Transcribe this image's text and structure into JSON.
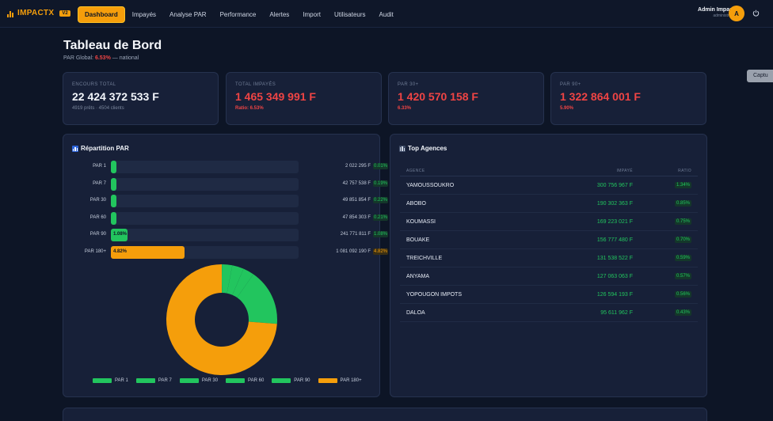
{
  "brand": {
    "name": "IMPACTX",
    "badge": "V2"
  },
  "nav": [
    "Dashboard",
    "Impayés",
    "Analyse PAR",
    "Performance",
    "Alertes",
    "Import",
    "Utilisateurs",
    "Audit"
  ],
  "user": {
    "name": "Admin ImpactX",
    "role": "administrateur",
    "initial": "A"
  },
  "capture_label": "Captu",
  "header": {
    "title": "Tableau de Bord",
    "subtitle_prefix": "PAR Global:",
    "subtitle_value": "6.53%",
    "subtitle_suffix": "— national"
  },
  "kpis": [
    {
      "label": "ENCOURS TOTAL",
      "value": "22 424 372 533 F",
      "sub": "4919 prêts · 4504 clients"
    },
    {
      "label": "TOTAL IMPAYÉS",
      "value": "1 465 349 991 F",
      "sub": "Ratio: 6.53%"
    },
    {
      "label": "PAR 30+",
      "value": "1 420 570 158 F",
      "sub": "6.33%"
    },
    {
      "label": "PAR 90+",
      "value": "1 322 864 001 F",
      "sub": "5.90%"
    }
  ],
  "par": {
    "title": "Répartition PAR",
    "rows": [
      {
        "label": "PAR 1",
        "amount": "2 022 295 F",
        "pct": "0.01%",
        "value": 0.01,
        "bar_text": ""
      },
      {
        "label": "PAR 7",
        "amount": "42 757 538 F",
        "pct": "0.19%",
        "value": 0.19,
        "bar_text": ""
      },
      {
        "label": "PAR 30",
        "amount": "49 851 854 F",
        "pct": "0.22%",
        "value": 0.22,
        "bar_text": ""
      },
      {
        "label": "PAR 60",
        "amount": "47 854 303 F",
        "pct": "0.21%",
        "value": 0.21,
        "bar_text": ""
      },
      {
        "label": "PAR 90",
        "amount": "241 771 811 F",
        "pct": "1.08%",
        "value": 1.08,
        "bar_text": "1.08%"
      },
      {
        "label": "PAR 180+",
        "amount": "1 081 092 190 F",
        "pct": "4.82%",
        "value": 4.82,
        "bar_text": "4.82%"
      }
    ],
    "bar_max": 12.3,
    "legend": [
      "PAR 1",
      "PAR 7",
      "PAR 30",
      "PAR 60",
      "PAR 90",
      "PAR 180+"
    ],
    "colors": {
      "green": "#22c55e",
      "orange": "#f59e0b"
    },
    "donut_values": [
      0.01,
      0.19,
      0.22,
      0.21,
      1.08,
      4.82
    ],
    "donut_colors": [
      "#22c55e",
      "#22c55e",
      "#22c55e",
      "#22c55e",
      "#22c55e",
      "#f59e0b"
    ]
  },
  "agences": {
    "title": "Top Agences",
    "headers": [
      "AGENCE",
      "IMPAYÉ",
      "RATIO"
    ],
    "rows": [
      {
        "name": "YAMOUSSOUKRO",
        "impaye": "300 756 967 F",
        "ratio": "1.34%"
      },
      {
        "name": "ABOBO",
        "impaye": "190 302 363 F",
        "ratio": "0.85%"
      },
      {
        "name": "KOUMASSI",
        "impaye": "169 223 021 F",
        "ratio": "0.75%"
      },
      {
        "name": "BOUAKE",
        "impaye": "156 777 480 F",
        "ratio": "0.70%"
      },
      {
        "name": "TREICHVILLE",
        "impaye": "131 538 522 F",
        "ratio": "0.59%"
      },
      {
        "name": "ANYAMA",
        "impaye": "127 063 063 F",
        "ratio": "0.57%"
      },
      {
        "name": "YOPOUGON IMPOTS",
        "impaye": "126 594 193 F",
        "ratio": "0.56%"
      },
      {
        "name": "DALOA",
        "impaye": "95 611 962 F",
        "ratio": "0.43%"
      }
    ]
  }
}
